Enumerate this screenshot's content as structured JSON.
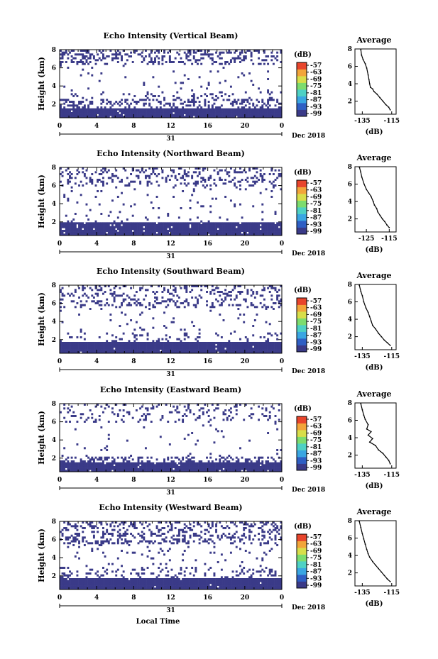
{
  "figure": {
    "date_label": "Dec 2018",
    "day_label": "31",
    "xlabel": "Local Time",
    "colorbar_unit": "(dB)",
    "colorbar_ticks": [
      "-57",
      "-63",
      "-69",
      "-75",
      "-81",
      "-87",
      "-93",
      "-99"
    ],
    "colorbar_colors": [
      "#3a3a88",
      "#2f5fc4",
      "#3aa6e2",
      "#4ed1c4",
      "#7ddc6e",
      "#d8de4a",
      "#f2a53a",
      "#e8452c"
    ]
  },
  "chart_data": [
    {
      "type": "heatmap",
      "title": "Echo Intensity (Vertical Beam)",
      "xlabel": "",
      "ylabel": "Height (km)",
      "x_ticks": [
        "0",
        "4",
        "8",
        "12",
        "16",
        "20",
        "0"
      ],
      "xlim": [
        0,
        24
      ],
      "y_ticks": [
        "8",
        "6",
        "4",
        "2"
      ],
      "ylim": [
        0.5,
        8
      ],
      "cell_color": "#3a3a88",
      "echo_layers": [
        {
          "from_km": 0.5,
          "to_km": 1.6,
          "fill": 0.99
        },
        {
          "from_km": 1.6,
          "to_km": 2.5,
          "fill": 0.35
        },
        {
          "from_km": 2.5,
          "to_km": 3.4,
          "fill": 0.12
        },
        {
          "from_km": 3.4,
          "to_km": 6.3,
          "fill": 0.03
        },
        {
          "from_km": 6.3,
          "to_km": 8.0,
          "fill": 0.3
        }
      ]
    },
    {
      "type": "heatmap",
      "title": "Echo Intensity (Northward Beam)",
      "xlabel": "",
      "ylabel": "Height (km)",
      "x_ticks": [
        "0",
        "4",
        "8",
        "12",
        "16",
        "20",
        "0"
      ],
      "xlim": [
        0,
        24
      ],
      "y_ticks": [
        "8",
        "6",
        "4",
        "2"
      ],
      "ylim": [
        0.5,
        8
      ],
      "cell_color": "#3a3a88",
      "echo_layers": [
        {
          "from_km": 0.5,
          "to_km": 2.0,
          "fill": 0.96
        },
        {
          "from_km": 2.0,
          "to_km": 3.0,
          "fill": 0.05
        },
        {
          "from_km": 3.0,
          "to_km": 6.0,
          "fill": 0.04
        },
        {
          "from_km": 6.0,
          "to_km": 8.0,
          "fill": 0.2
        }
      ]
    },
    {
      "type": "heatmap",
      "title": "Echo Intensity (Southward Beam)",
      "xlabel": "",
      "ylabel": "Height (km)",
      "x_ticks": [
        "0",
        "4",
        "8",
        "12",
        "16",
        "20",
        "0"
      ],
      "xlim": [
        0,
        24
      ],
      "y_ticks": [
        "8",
        "6",
        "4",
        "2"
      ],
      "ylim": [
        0.5,
        8
      ],
      "cell_color": "#3a3a88",
      "echo_layers": [
        {
          "from_km": 0.5,
          "to_km": 1.7,
          "fill": 0.99
        },
        {
          "from_km": 1.7,
          "to_km": 2.8,
          "fill": 0.12
        },
        {
          "from_km": 2.8,
          "to_km": 5.5,
          "fill": 0.03
        },
        {
          "from_km": 5.5,
          "to_km": 8.0,
          "fill": 0.22
        }
      ]
    },
    {
      "type": "heatmap",
      "title": "Echo Intensity (Eastward Beam)",
      "xlabel": "",
      "ylabel": "Height (km)",
      "x_ticks": [
        "0",
        "4",
        "8",
        "12",
        "16",
        "20",
        "0"
      ],
      "xlim": [
        0,
        24
      ],
      "y_ticks": [
        "8",
        "6",
        "4",
        "2"
      ],
      "ylim": [
        0.5,
        8
      ],
      "cell_color": "#3a3a88",
      "echo_layers": [
        {
          "from_km": 0.5,
          "to_km": 1.6,
          "fill": 0.98
        },
        {
          "from_km": 1.6,
          "to_km": 2.2,
          "fill": 0.4
        },
        {
          "from_km": 2.2,
          "to_km": 6.0,
          "fill": 0.02
        },
        {
          "from_km": 6.0,
          "to_km": 8.0,
          "fill": 0.14
        }
      ]
    },
    {
      "type": "heatmap",
      "title": "Echo Intensity (Westward Beam)",
      "xlabel": "Local Time",
      "ylabel": "Height (km)",
      "x_ticks": [
        "0",
        "4",
        "8",
        "12",
        "16",
        "20",
        "0"
      ],
      "xlim": [
        0,
        24
      ],
      "y_ticks": [
        "8",
        "6",
        "4",
        "2"
      ],
      "ylim": [
        0.5,
        8
      ],
      "cell_color": "#3a3a88",
      "echo_layers": [
        {
          "from_km": 0.5,
          "to_km": 1.8,
          "fill": 0.99
        },
        {
          "from_km": 1.8,
          "to_km": 3.0,
          "fill": 0.2
        },
        {
          "from_km": 3.0,
          "to_km": 5.5,
          "fill": 0.05
        },
        {
          "from_km": 5.5,
          "to_km": 8.0,
          "fill": 0.25
        }
      ]
    }
  ],
  "profiles": [
    {
      "type": "line",
      "title": "Average",
      "xlabel": "(dB)",
      "x_ticks": [
        "-135",
        "-115"
      ],
      "xlim": [
        -140,
        -112
      ],
      "y_ticks": [
        "8",
        "6",
        "4",
        "2"
      ],
      "ylim": [
        0.5,
        8
      ],
      "points": [
        [
          -136,
          7.9
        ],
        [
          -135.5,
          7.3
        ],
        [
          -134.5,
          6.8
        ],
        [
          -133,
          6.3
        ],
        [
          -132,
          5.8
        ],
        [
          -131,
          5.0
        ],
        [
          -130.5,
          4.5
        ],
        [
          -130,
          4.0
        ],
        [
          -129.5,
          3.6
        ],
        [
          -128,
          3.4
        ],
        [
          -127,
          3.1
        ],
        [
          -125,
          2.8
        ],
        [
          -123,
          2.4
        ],
        [
          -121,
          2.0
        ],
        [
          -119,
          1.6
        ],
        [
          -117,
          1.3
        ],
        [
          -116,
          1.0
        ]
      ]
    },
    {
      "type": "line",
      "title": "Average",
      "xlabel": "(dB)",
      "x_ticks": [
        "-125",
        "-115"
      ],
      "xlim": [
        -130,
        -112
      ],
      "y_ticks": [
        "8",
        "6",
        "4",
        "2"
      ],
      "ylim": [
        0.5,
        8
      ],
      "points": [
        [
          -128,
          7.9
        ],
        [
          -127.5,
          7.4
        ],
        [
          -127,
          6.8
        ],
        [
          -126,
          6.0
        ],
        [
          -125,
          5.4
        ],
        [
          -124,
          5.0
        ],
        [
          -123,
          4.6
        ],
        [
          -122,
          4.0
        ],
        [
          -121.5,
          3.6
        ],
        [
          -120.5,
          3.2
        ],
        [
          -120,
          2.8
        ],
        [
          -119,
          2.4
        ],
        [
          -118,
          2.0
        ],
        [
          -117,
          1.7
        ],
        [
          -116,
          1.3
        ],
        [
          -115,
          1.0
        ]
      ]
    },
    {
      "type": "line",
      "title": "Average",
      "xlabel": "(dB)",
      "x_ticks": [
        "-135",
        "-115"
      ],
      "xlim": [
        -140,
        -112
      ],
      "y_ticks": [
        "8",
        "6",
        "4",
        "2"
      ],
      "ylim": [
        0.5,
        8
      ],
      "points": [
        [
          -137,
          7.9
        ],
        [
          -136,
          7.2
        ],
        [
          -135,
          6.7
        ],
        [
          -134,
          6.0
        ],
        [
          -132.5,
          5.3
        ],
        [
          -131,
          4.8
        ],
        [
          -130,
          4.3
        ],
        [
          -129,
          3.8
        ],
        [
          -128,
          3.3
        ],
        [
          -126,
          2.9
        ],
        [
          -124,
          2.4
        ],
        [
          -122,
          2.0
        ],
        [
          -120,
          1.6
        ],
        [
          -118,
          1.3
        ],
        [
          -116,
          1.0
        ]
      ]
    },
    {
      "type": "line",
      "title": "Average",
      "xlabel": "(dB)",
      "x_ticks": [
        "-135",
        "-115"
      ],
      "xlim": [
        -140,
        -112
      ],
      "y_ticks": [
        "8",
        "6",
        "4",
        "2"
      ],
      "ylim": [
        0.5,
        8
      ],
      "points": [
        [
          -136,
          7.9
        ],
        [
          -135,
          7.2
        ],
        [
          -134,
          6.6
        ],
        [
          -133,
          6.1
        ],
        [
          -131,
          5.5
        ],
        [
          -132,
          5.0
        ],
        [
          -129,
          4.7
        ],
        [
          -131,
          4.3
        ],
        [
          -128,
          3.9
        ],
        [
          -130,
          3.5
        ],
        [
          -126,
          3.1
        ],
        [
          -124,
          2.6
        ],
        [
          -121,
          2.2
        ],
        [
          -119,
          1.8
        ],
        [
          -117,
          1.4
        ],
        [
          -116,
          1.0
        ]
      ]
    },
    {
      "type": "line",
      "title": "Average",
      "xlabel": "(dB)",
      "x_ticks": [
        "-135",
        "-115"
      ],
      "xlim": [
        -140,
        -112
      ],
      "y_ticks": [
        "8",
        "6",
        "4",
        "2"
      ],
      "ylim": [
        0.5,
        8
      ],
      "points": [
        [
          -137,
          7.9
        ],
        [
          -136,
          7.2
        ],
        [
          -135,
          6.5
        ],
        [
          -134,
          5.9
        ],
        [
          -133,
          5.3
        ],
        [
          -132,
          4.7
        ],
        [
          -131,
          4.2
        ],
        [
          -130,
          3.8
        ],
        [
          -128,
          3.3
        ],
        [
          -126,
          2.9
        ],
        [
          -124,
          2.5
        ],
        [
          -122,
          2.1
        ],
        [
          -120,
          1.7
        ],
        [
          -118,
          1.3
        ],
        [
          -116,
          1.0
        ]
      ]
    }
  ]
}
